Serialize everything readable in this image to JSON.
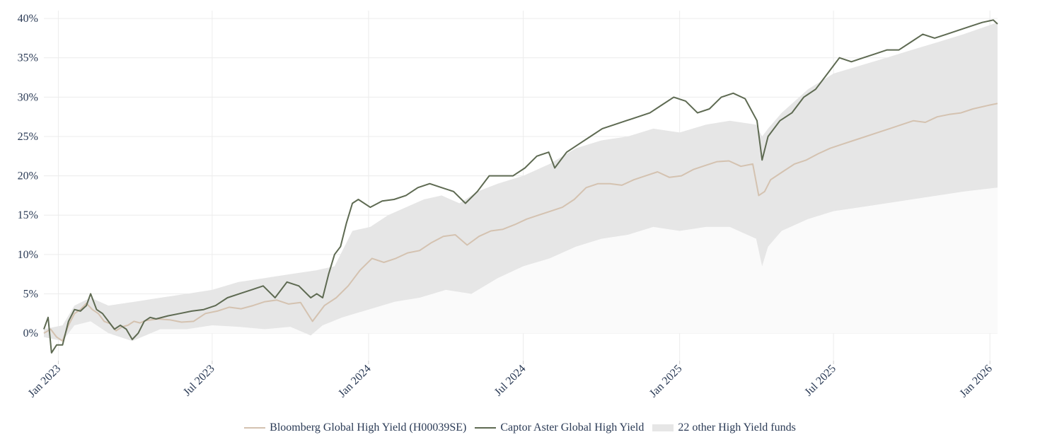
{
  "chart_data": {
    "type": "line",
    "title": "",
    "xlabel": "",
    "ylabel": "",
    "x_range": [
      "2022-12-15",
      "2026-01-10"
    ],
    "ylim": [
      -3.5,
      41
    ],
    "y_ticks": [
      0,
      5,
      10,
      15,
      20,
      25,
      30,
      35,
      40
    ],
    "y_tick_labels": [
      "0%",
      "5%",
      "10%",
      "15%",
      "20%",
      "25%",
      "30%",
      "35%",
      "40%"
    ],
    "x_ticks": [
      "2023-01-01",
      "2023-07-01",
      "2024-01-01",
      "2024-07-01",
      "2025-01-01",
      "2025-07-01",
      "2026-01-01"
    ],
    "x_tick_labels": [
      "Jan 2023",
      "Jul 2023",
      "Jan 2024",
      "Jul 2024",
      "Jan 2025",
      "Jul 2025",
      "Jan 2026"
    ],
    "grid": true,
    "series": [
      {
        "name": "Bloomberg Global High Yield (H00039SE)",
        "color": "#d4c2b0",
        "points": [
          [
            "2022-12-15",
            0
          ],
          [
            "2022-12-23",
            0.5
          ],
          [
            "2022-12-30",
            -0.5
          ],
          [
            "2023-01-06",
            -1
          ],
          [
            "2023-01-13",
            1
          ],
          [
            "2023-01-20",
            2.5
          ],
          [
            "2023-01-27",
            3
          ],
          [
            "2023-02-03",
            3.8
          ],
          [
            "2023-02-10",
            3
          ],
          [
            "2023-02-17",
            2.5
          ],
          [
            "2023-02-24",
            1.5
          ],
          [
            "2023-03-03",
            1.2
          ],
          [
            "2023-03-10",
            0.3
          ],
          [
            "2023-03-17",
            0.8
          ],
          [
            "2023-03-24",
            1
          ],
          [
            "2023-03-31",
            1.5
          ],
          [
            "2023-04-07",
            1.3
          ],
          [
            "2023-04-14",
            1.6
          ],
          [
            "2023-04-28",
            1.8
          ],
          [
            "2023-05-12",
            1.7
          ],
          [
            "2023-05-26",
            1.4
          ],
          [
            "2023-06-09",
            1.5
          ],
          [
            "2023-06-23",
            2.5
          ],
          [
            "2023-07-07",
            2.8
          ],
          [
            "2023-07-21",
            3.3
          ],
          [
            "2023-08-04",
            3.1
          ],
          [
            "2023-08-18",
            3.5
          ],
          [
            "2023-09-01",
            4
          ],
          [
            "2023-09-15",
            4.2
          ],
          [
            "2023-09-29",
            3.7
          ],
          [
            "2023-10-13",
            3.9
          ],
          [
            "2023-10-27",
            1.5
          ],
          [
            "2023-11-10",
            3.5
          ],
          [
            "2023-11-24",
            4.5
          ],
          [
            "2023-12-08",
            6
          ],
          [
            "2023-12-22",
            8
          ],
          [
            "2024-01-05",
            9.5
          ],
          [
            "2024-01-19",
            9
          ],
          [
            "2024-02-02",
            9.5
          ],
          [
            "2024-02-16",
            10.2
          ],
          [
            "2024-03-01",
            10.5
          ],
          [
            "2024-03-15",
            11.5
          ],
          [
            "2024-03-29",
            12.3
          ],
          [
            "2024-04-12",
            12.5
          ],
          [
            "2024-04-26",
            11.2
          ],
          [
            "2024-05-10",
            12.3
          ],
          [
            "2024-05-24",
            13
          ],
          [
            "2024-06-07",
            13.2
          ],
          [
            "2024-06-21",
            13.8
          ],
          [
            "2024-07-05",
            14.5
          ],
          [
            "2024-07-19",
            15
          ],
          [
            "2024-08-02",
            15.5
          ],
          [
            "2024-08-16",
            16
          ],
          [
            "2024-08-30",
            17
          ],
          [
            "2024-09-13",
            18.5
          ],
          [
            "2024-09-27",
            19
          ],
          [
            "2024-10-11",
            19
          ],
          [
            "2024-10-25",
            18.8
          ],
          [
            "2024-11-08",
            19.5
          ],
          [
            "2024-11-22",
            20
          ],
          [
            "2024-12-06",
            20.5
          ],
          [
            "2024-12-20",
            19.8
          ],
          [
            "2025-01-03",
            20
          ],
          [
            "2025-01-17",
            20.8
          ],
          [
            "2025-01-31",
            21.3
          ],
          [
            "2025-02-14",
            21.8
          ],
          [
            "2025-02-28",
            21.9
          ],
          [
            "2025-03-14",
            21.2
          ],
          [
            "2025-03-28",
            21.5
          ],
          [
            "2025-04-04",
            17.5
          ],
          [
            "2025-04-11",
            18
          ],
          [
            "2025-04-18",
            19.5
          ],
          [
            "2025-05-02",
            20.5
          ],
          [
            "2025-05-16",
            21.5
          ],
          [
            "2025-05-30",
            22
          ],
          [
            "2025-06-13",
            22.8
          ],
          [
            "2025-06-27",
            23.5
          ],
          [
            "2025-07-11",
            24
          ],
          [
            "2025-07-25",
            24.5
          ],
          [
            "2025-08-08",
            25
          ],
          [
            "2025-08-22",
            25.5
          ],
          [
            "2025-09-05",
            26
          ],
          [
            "2025-09-19",
            26.5
          ],
          [
            "2025-10-03",
            27
          ],
          [
            "2025-10-17",
            26.8
          ],
          [
            "2025-10-31",
            27.5
          ],
          [
            "2025-11-14",
            27.8
          ],
          [
            "2025-11-28",
            28
          ],
          [
            "2025-12-12",
            28.5
          ],
          [
            "2026-01-01",
            29
          ],
          [
            "2026-01-10",
            29.2
          ]
        ]
      },
      {
        "name": "Captor Aster Global High Yield",
        "color": "#5e6a52",
        "points": [
          [
            "2022-12-15",
            0.5
          ],
          [
            "2022-12-20",
            2
          ],
          [
            "2022-12-24",
            -2.5
          ],
          [
            "2022-12-30",
            -1.5
          ],
          [
            "2023-01-06",
            -1.5
          ],
          [
            "2023-01-13",
            1.5
          ],
          [
            "2023-01-20",
            3
          ],
          [
            "2023-01-27",
            2.8
          ],
          [
            "2023-02-03",
            3.5
          ],
          [
            "2023-02-08",
            5
          ],
          [
            "2023-02-15",
            3
          ],
          [
            "2023-02-22",
            2.5
          ],
          [
            "2023-03-01",
            1.5
          ],
          [
            "2023-03-08",
            0.5
          ],
          [
            "2023-03-15",
            1
          ],
          [
            "2023-03-22",
            0.5
          ],
          [
            "2023-03-29",
            -0.8
          ],
          [
            "2023-04-05",
            0
          ],
          [
            "2023-04-12",
            1.5
          ],
          [
            "2023-04-19",
            2
          ],
          [
            "2023-04-26",
            1.8
          ],
          [
            "2023-05-10",
            2.2
          ],
          [
            "2023-05-24",
            2.5
          ],
          [
            "2023-06-07",
            2.8
          ],
          [
            "2023-06-21",
            3
          ],
          [
            "2023-07-05",
            3.5
          ],
          [
            "2023-07-19",
            4.5
          ],
          [
            "2023-08-02",
            5
          ],
          [
            "2023-08-16",
            5.5
          ],
          [
            "2023-08-30",
            6
          ],
          [
            "2023-09-13",
            4.5
          ],
          [
            "2023-09-27",
            6.5
          ],
          [
            "2023-10-11",
            6
          ],
          [
            "2023-10-25",
            4.5
          ],
          [
            "2023-11-01",
            5
          ],
          [
            "2023-11-08",
            4.5
          ],
          [
            "2023-11-15",
            7.5
          ],
          [
            "2023-11-22",
            10
          ],
          [
            "2023-11-29",
            11
          ],
          [
            "2023-12-06",
            14
          ],
          [
            "2023-12-13",
            16.5
          ],
          [
            "2023-12-20",
            17
          ],
          [
            "2024-01-03",
            16
          ],
          [
            "2024-01-17",
            16.8
          ],
          [
            "2024-01-31",
            17
          ],
          [
            "2024-02-14",
            17.5
          ],
          [
            "2024-02-28",
            18.5
          ],
          [
            "2024-03-13",
            19
          ],
          [
            "2024-03-27",
            18.5
          ],
          [
            "2024-04-10",
            18
          ],
          [
            "2024-04-24",
            16.5
          ],
          [
            "2024-05-08",
            18
          ],
          [
            "2024-05-22",
            20
          ],
          [
            "2024-06-05",
            20
          ],
          [
            "2024-06-19",
            20
          ],
          [
            "2024-07-03",
            21
          ],
          [
            "2024-07-17",
            22.5
          ],
          [
            "2024-07-31",
            23
          ],
          [
            "2024-08-07",
            21
          ],
          [
            "2024-08-21",
            23
          ],
          [
            "2024-09-04",
            24
          ],
          [
            "2024-09-18",
            25
          ],
          [
            "2024-10-02",
            26
          ],
          [
            "2024-10-16",
            26.5
          ],
          [
            "2024-10-30",
            27
          ],
          [
            "2024-11-13",
            27.5
          ],
          [
            "2024-11-27",
            28
          ],
          [
            "2024-12-11",
            29
          ],
          [
            "2024-12-25",
            30
          ],
          [
            "2025-01-08",
            29.5
          ],
          [
            "2025-01-22",
            28
          ],
          [
            "2025-02-05",
            28.5
          ],
          [
            "2025-02-19",
            30
          ],
          [
            "2025-03-05",
            30.5
          ],
          [
            "2025-03-19",
            29.8
          ],
          [
            "2025-04-02",
            27
          ],
          [
            "2025-04-08",
            22
          ],
          [
            "2025-04-15",
            25
          ],
          [
            "2025-04-29",
            27
          ],
          [
            "2025-05-13",
            28
          ],
          [
            "2025-05-27",
            30
          ],
          [
            "2025-06-10",
            31
          ],
          [
            "2025-06-24",
            33
          ],
          [
            "2025-07-08",
            35
          ],
          [
            "2025-07-22",
            34.5
          ],
          [
            "2025-08-05",
            35
          ],
          [
            "2025-08-19",
            35.5
          ],
          [
            "2025-09-02",
            36
          ],
          [
            "2025-09-16",
            36
          ],
          [
            "2025-09-30",
            37
          ],
          [
            "2025-10-14",
            38
          ],
          [
            "2025-10-28",
            37.5
          ],
          [
            "2025-11-11",
            38
          ],
          [
            "2025-11-25",
            38.5
          ],
          [
            "2025-12-09",
            39
          ],
          [
            "2025-12-23",
            39.5
          ],
          [
            "2026-01-05",
            39.8
          ],
          [
            "2026-01-10",
            39.3
          ]
        ]
      }
    ],
    "band": {
      "name": "22 other High Yield funds",
      "color": "#e6e6e6",
      "upper": [
        [
          "2022-12-15",
          0.5
        ],
        [
          "2023-01-06",
          1
        ],
        [
          "2023-01-20",
          3.5
        ],
        [
          "2023-02-08",
          4.5
        ],
        [
          "2023-03-01",
          3.5
        ],
        [
          "2023-04-01",
          4
        ],
        [
          "2023-05-01",
          4.5
        ],
        [
          "2023-06-01",
          5
        ],
        [
          "2023-07-01",
          5.5
        ],
        [
          "2023-08-01",
          6.5
        ],
        [
          "2023-09-01",
          7
        ],
        [
          "2023-10-01",
          7.5
        ],
        [
          "2023-11-01",
          8
        ],
        [
          "2023-11-22",
          8.5
        ],
        [
          "2023-12-13",
          13
        ],
        [
          "2024-01-03",
          13.5
        ],
        [
          "2024-01-24",
          15
        ],
        [
          "2024-02-14",
          16
        ],
        [
          "2024-03-06",
          17
        ],
        [
          "2024-03-27",
          17.5
        ],
        [
          "2024-04-17",
          16.5
        ],
        [
          "2024-05-08",
          18
        ],
        [
          "2024-06-01",
          19
        ],
        [
          "2024-07-01",
          20
        ],
        [
          "2024-08-01",
          21.5
        ],
        [
          "2024-09-01",
          23.5
        ],
        [
          "2024-10-01",
          24.5
        ],
        [
          "2024-11-01",
          25
        ],
        [
          "2024-12-01",
          26
        ],
        [
          "2025-01-01",
          25.5
        ],
        [
          "2025-02-01",
          26.5
        ],
        [
          "2025-03-01",
          27
        ],
        [
          "2025-04-01",
          26.5
        ],
        [
          "2025-04-08",
          25
        ],
        [
          "2025-04-15",
          26
        ],
        [
          "2025-05-01",
          28
        ],
        [
          "2025-06-01",
          31
        ],
        [
          "2025-07-01",
          33
        ],
        [
          "2025-08-01",
          34
        ],
        [
          "2025-09-01",
          35
        ],
        [
          "2025-10-01",
          36
        ],
        [
          "2025-11-01",
          37
        ],
        [
          "2025-12-01",
          38
        ],
        [
          "2026-01-10",
          39.5
        ]
      ],
      "lower": [
        [
          "2022-12-15",
          -0.5
        ],
        [
          "2023-01-06",
          -1
        ],
        [
          "2023-01-20",
          1
        ],
        [
          "2023-02-08",
          1.5
        ],
        [
          "2023-03-01",
          0
        ],
        [
          "2023-03-29",
          -1
        ],
        [
          "2023-05-01",
          0.5
        ],
        [
          "2023-06-01",
          0.5
        ],
        [
          "2023-07-01",
          1
        ],
        [
          "2023-08-01",
          0.8
        ],
        [
          "2023-09-01",
          0.5
        ],
        [
          "2023-10-01",
          0.8
        ],
        [
          "2023-10-25",
          -0.3
        ],
        [
          "2023-11-08",
          1
        ],
        [
          "2023-12-01",
          2
        ],
        [
          "2024-01-01",
          3
        ],
        [
          "2024-02-01",
          4
        ],
        [
          "2024-03-01",
          4.5
        ],
        [
          "2024-04-01",
          5.5
        ],
        [
          "2024-05-01",
          5
        ],
        [
          "2024-06-01",
          7
        ],
        [
          "2024-07-01",
          8.5
        ],
        [
          "2024-08-01",
          9.5
        ],
        [
          "2024-09-01",
          11
        ],
        [
          "2024-10-01",
          12
        ],
        [
          "2024-11-01",
          12.5
        ],
        [
          "2024-12-01",
          13.5
        ],
        [
          "2025-01-01",
          13
        ],
        [
          "2025-02-01",
          13.5
        ],
        [
          "2025-03-01",
          13.5
        ],
        [
          "2025-04-01",
          12
        ],
        [
          "2025-04-08",
          8.5
        ],
        [
          "2025-04-15",
          11
        ],
        [
          "2025-05-01",
          13
        ],
        [
          "2025-06-01",
          14.5
        ],
        [
          "2025-07-01",
          15.5
        ],
        [
          "2025-08-01",
          16
        ],
        [
          "2025-09-01",
          16.5
        ],
        [
          "2025-10-01",
          17
        ],
        [
          "2025-11-01",
          17.5
        ],
        [
          "2025-12-01",
          18
        ],
        [
          "2026-01-10",
          18.5
        ]
      ]
    },
    "legend_position": "bottom-center"
  },
  "legend": {
    "items": [
      {
        "label": "Bloomberg Global High Yield (H00039SE)",
        "kind": "line",
        "color": "#d4c2b0"
      },
      {
        "label": "Captor Aster Global High Yield",
        "kind": "line",
        "color": "#5e6a52"
      },
      {
        "label": "22 other High Yield funds",
        "kind": "band",
        "color": "#e6e6e6"
      }
    ]
  }
}
